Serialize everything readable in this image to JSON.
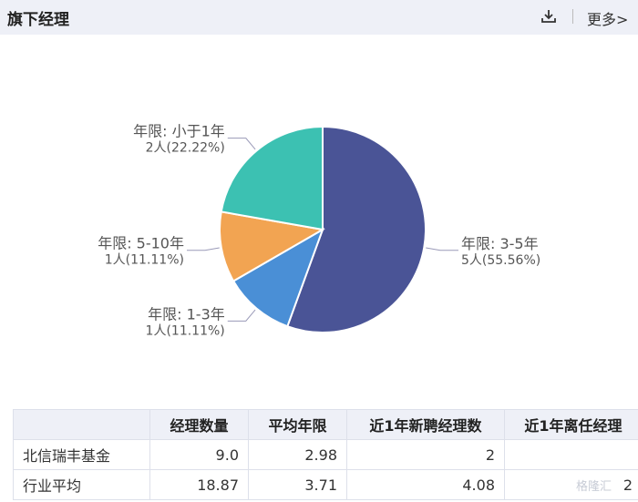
{
  "header": {
    "title": "旗下经理",
    "more_label": "更多>"
  },
  "chart_data": {
    "type": "pie",
    "slices": [
      {
        "label": "年限: 3-5年",
        "count_text": "5人(55.56%)",
        "value": 55.56,
        "color": "#4a5496"
      },
      {
        "label": "年限: 1-3年",
        "count_text": "1人(11.11%)",
        "value": 11.11,
        "color": "#4a8fd6"
      },
      {
        "label": "年限: 5-10年",
        "count_text": "1人(11.11%)",
        "value": 11.11,
        "color": "#f2a452"
      },
      {
        "label": "年限: 小于1年",
        "count_text": "2人(22.22%)",
        "value": 22.22,
        "color": "#3cc1b2"
      }
    ]
  },
  "table": {
    "headers": [
      "",
      "经理数量",
      "平均年限",
      "近1年新聘经理数",
      "近1年离任经理"
    ],
    "rows": [
      {
        "name": "北信瑞丰基金",
        "cells": [
          "9.0",
          "2.98",
          "2",
          ""
        ]
      },
      {
        "name": "行业平均",
        "cells": [
          "18.87",
          "3.71",
          "4.08",
          "2"
        ]
      }
    ]
  },
  "watermark": "格隆汇"
}
